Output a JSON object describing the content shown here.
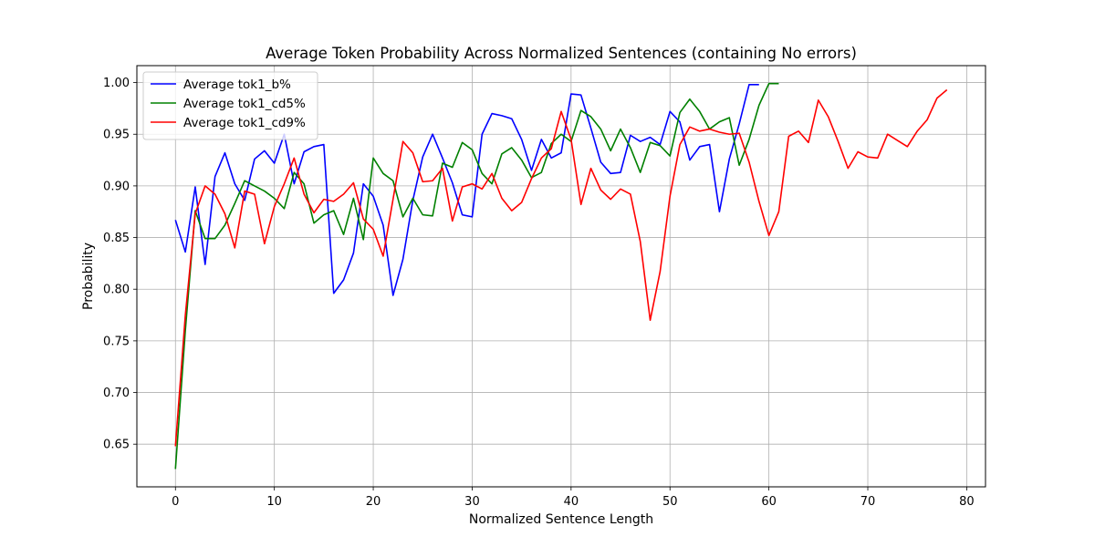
{
  "chart_data": {
    "type": "line",
    "title": "Average Token Probability Across Normalized Sentences (containing No errors)",
    "xlabel": "Normalized Sentence Length",
    "ylabel": "Probability",
    "xlim": [
      -3.9,
      81.9
    ],
    "ylim": [
      0.6087,
      1.0164
    ],
    "xticks": [
      0,
      10,
      20,
      30,
      40,
      50,
      60,
      70,
      80
    ],
    "yticks": [
      0.65,
      0.7,
      0.75,
      0.8,
      0.85,
      0.9,
      0.95,
      1.0
    ],
    "grid": true,
    "legend_position": "upper-left",
    "series": [
      {
        "name": "Average tok1_b%",
        "color": "#0000ff",
        "values": [
          0.867,
          0.836,
          0.899,
          0.824,
          0.909,
          0.932,
          0.902,
          0.886,
          0.926,
          0.934,
          0.922,
          0.95,
          0.902,
          0.933,
          0.938,
          0.94,
          0.796,
          0.809,
          0.835,
          0.902,
          0.89,
          0.862,
          0.794,
          0.829,
          0.886,
          0.928,
          0.95,
          0.927,
          0.903,
          0.872,
          0.87,
          0.95,
          0.97,
          0.968,
          0.965,
          0.945,
          0.915,
          0.945,
          0.927,
          0.932,
          0.989,
          0.988,
          0.956,
          0.923,
          0.912,
          0.913,
          0.949,
          0.943,
          0.947,
          0.94,
          0.972,
          0.962,
          0.925,
          0.938,
          0.94,
          0.875,
          0.926,
          0.96,
          0.998,
          0.998
        ]
      },
      {
        "name": "Average tok1_cd5%",
        "color": "#008000",
        "values": [
          0.626,
          0.76,
          0.876,
          0.849,
          0.849,
          0.862,
          0.883,
          0.905,
          0.9,
          0.895,
          0.888,
          0.878,
          0.913,
          0.902,
          0.864,
          0.872,
          0.876,
          0.853,
          0.888,
          0.848,
          0.927,
          0.912,
          0.905,
          0.87,
          0.888,
          0.872,
          0.871,
          0.922,
          0.918,
          0.942,
          0.935,
          0.912,
          0.902,
          0.931,
          0.937,
          0.925,
          0.908,
          0.913,
          0.941,
          0.95,
          0.943,
          0.973,
          0.967,
          0.955,
          0.934,
          0.955,
          0.937,
          0.913,
          0.942,
          0.939,
          0.929,
          0.971,
          0.984,
          0.972,
          0.955,
          0.962,
          0.966,
          0.92,
          0.945,
          0.978,
          0.999,
          0.999
        ]
      },
      {
        "name": "Average tok1_cd9%",
        "color": "#ff0000",
        "values": [
          0.648,
          0.775,
          0.873,
          0.9,
          0.892,
          0.873,
          0.84,
          0.895,
          0.892,
          0.844,
          0.88,
          0.902,
          0.927,
          0.892,
          0.874,
          0.887,
          0.885,
          0.892,
          0.903,
          0.868,
          0.858,
          0.832,
          0.887,
          0.943,
          0.932,
          0.904,
          0.905,
          0.917,
          0.866,
          0.899,
          0.902,
          0.897,
          0.912,
          0.888,
          0.876,
          0.884,
          0.907,
          0.927,
          0.936,
          0.972,
          0.945,
          0.882,
          0.917,
          0.896,
          0.887,
          0.897,
          0.892,
          0.846,
          0.77,
          0.817,
          0.89,
          0.94,
          0.957,
          0.953,
          0.955,
          0.952,
          0.95,
          0.951,
          0.923,
          0.885,
          0.852,
          0.875,
          0.948,
          0.953,
          0.942,
          0.983,
          0.967,
          0.943,
          0.917,
          0.933,
          0.928,
          0.927,
          0.95,
          0.944,
          0.938,
          0.953,
          0.964,
          0.985,
          0.993
        ]
      }
    ]
  }
}
